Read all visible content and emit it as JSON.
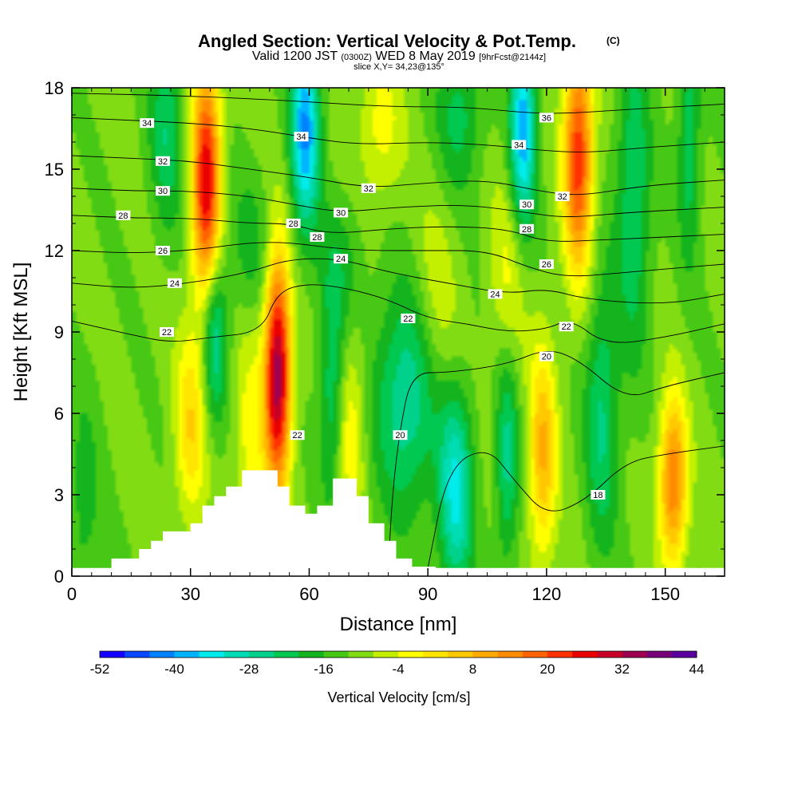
{
  "chart_data": {
    "type": "heatmap",
    "title": "Angled Section: Vertical Velocity & Pot.Temp.",
    "title_mark": "(C)",
    "subtitle_valid": "Valid 1200 JST",
    "subtitle_utc": "(0300Z)",
    "subtitle_date": "WED 8 May 2019",
    "subtitle_fcst": "[9hrFcst@2144z]",
    "subtitle_slice": "slice X,Y= 34,23@135°",
    "xlabel": "Distance [nm]",
    "ylabel": "Height [Kft MSL]",
    "xlim": [
      0,
      165
    ],
    "ylim": [
      0,
      18
    ],
    "x_ticks": [
      "0",
      "30",
      "60",
      "90",
      "120",
      "150"
    ],
    "x_tick_values": [
      0,
      30,
      60,
      90,
      120,
      150
    ],
    "y_ticks": [
      "0",
      "3",
      "6",
      "9",
      "12",
      "15",
      "18"
    ],
    "y_tick_values": [
      0,
      3,
      6,
      9,
      12,
      15,
      18
    ],
    "colorbar": {
      "label": "Vertical Velocity [cm/s]",
      "tick_labels": [
        "-52",
        "-40",
        "-28",
        "-16",
        "-4",
        "8",
        "20",
        "32",
        "44"
      ],
      "colors": [
        "#1400ff",
        "#0a46ff",
        "#0082ff",
        "#00b4ff",
        "#00ebeb",
        "#00dcb4",
        "#00d28c",
        "#00c850",
        "#14b41e",
        "#46c814",
        "#82dc14",
        "#c3f000",
        "#ffff00",
        "#ffe600",
        "#ffc800",
        "#ffaa00",
        "#ff8c00",
        "#ff6400",
        "#ff3200",
        "#eb0000",
        "#c80028",
        "#a00050",
        "#780078",
        "#5a00a0"
      ]
    },
    "terrain": [
      [
        0,
        0.3
      ],
      [
        10,
        0.3
      ],
      [
        10,
        0.65
      ],
      [
        17,
        0.65
      ],
      [
        17,
        1.0
      ],
      [
        20,
        1.0
      ],
      [
        20,
        1.3
      ],
      [
        23,
        1.3
      ],
      [
        23,
        1.65
      ],
      [
        30,
        1.65
      ],
      [
        30,
        1.95
      ],
      [
        33,
        1.95
      ],
      [
        33,
        2.6
      ],
      [
        36,
        2.6
      ],
      [
        36,
        2.95
      ],
      [
        39,
        2.95
      ],
      [
        39,
        3.3
      ],
      [
        43,
        3.3
      ],
      [
        43,
        3.9
      ],
      [
        52,
        3.9
      ],
      [
        52,
        3.3
      ],
      [
        55,
        3.3
      ],
      [
        55,
        2.6
      ],
      [
        59,
        2.6
      ],
      [
        59,
        2.3
      ],
      [
        62,
        2.3
      ],
      [
        62,
        2.6
      ],
      [
        66,
        2.6
      ],
      [
        66,
        3.6
      ],
      [
        72,
        3.6
      ],
      [
        72,
        2.95
      ],
      [
        75,
        2.95
      ],
      [
        75,
        1.95
      ],
      [
        79,
        1.95
      ],
      [
        79,
        1.3
      ],
      [
        82,
        1.3
      ],
      [
        82,
        0.65
      ],
      [
        86,
        0.65
      ],
      [
        86,
        0.35
      ],
      [
        92,
        0.35
      ],
      [
        92,
        0.3
      ],
      [
        165,
        0.3
      ]
    ],
    "vertical_velocity_cells": [
      {
        "x": 34,
        "y": 14.5,
        "w": 58,
        "sx": 2.5,
        "sy": 3.2
      },
      {
        "x": 52,
        "y": 7.5,
        "w": 70,
        "sx": 2.3,
        "sy": 3.0
      },
      {
        "x": 128,
        "y": 15.5,
        "w": 52,
        "sx": 2.6,
        "sy": 3.0
      },
      {
        "x": 152,
        "y": 3.5,
        "w": 42,
        "sx": 2.5,
        "sy": 2.2
      },
      {
        "x": 119,
        "y": 4.5,
        "w": 30,
        "sx": 2.5,
        "sy": 2.8
      },
      {
        "x": 30,
        "y": 5.5,
        "w": 22,
        "sx": 2.8,
        "sy": 2.5
      },
      {
        "x": 70,
        "y": 5.5,
        "w": 18,
        "sx": 3.0,
        "sy": 2.5
      },
      {
        "x": 45,
        "y": 5.0,
        "w": 14,
        "sx": 3.0,
        "sy": 3.0
      },
      {
        "x": 78,
        "y": 16.5,
        "w": 14,
        "sx": 4.0,
        "sy": 2.0
      },
      {
        "x": 92,
        "y": 9.5,
        "w": 12,
        "sx": 4.0,
        "sy": 3.0
      },
      {
        "x": 110,
        "y": 11.0,
        "w": 12,
        "sx": 3.0,
        "sy": 3.0
      },
      {
        "x": 59,
        "y": 16.5,
        "w": -44,
        "sx": 2.5,
        "sy": 2.5
      },
      {
        "x": 114,
        "y": 16.5,
        "w": -42,
        "sx": 2.3,
        "sy": 2.5
      },
      {
        "x": 36,
        "y": 9.0,
        "w": -28,
        "sx": 2.2,
        "sy": 2.2
      },
      {
        "x": 97,
        "y": 3.0,
        "w": -32,
        "sx": 3.0,
        "sy": 2.6
      },
      {
        "x": 85,
        "y": 6.5,
        "w": -26,
        "sx": 6.0,
        "sy": 2.8
      },
      {
        "x": 66,
        "y": 6.5,
        "w": -22,
        "sx": 2.3,
        "sy": 2.8
      },
      {
        "x": 110,
        "y": 4.5,
        "w": -22,
        "sx": 2.0,
        "sy": 2.8
      },
      {
        "x": 134,
        "y": 6.0,
        "w": -20,
        "sx": 3.0,
        "sy": 3.5
      },
      {
        "x": 142,
        "y": 14.0,
        "w": -20,
        "sx": 3.0,
        "sy": 4.0
      },
      {
        "x": 24,
        "y": 16.5,
        "w": -18,
        "sx": 3.0,
        "sy": 2.5
      },
      {
        "x": 98,
        "y": 17.0,
        "w": -16,
        "sx": 4.0,
        "sy": 2.0
      },
      {
        "x": 156,
        "y": 16.0,
        "w": -18,
        "sx": 2.0,
        "sy": 3.0
      },
      {
        "x": 3,
        "y": 2.5,
        "w": -10,
        "sx": 3.0,
        "sy": 3.0
      },
      {
        "x": 68,
        "y": 11.5,
        "w": -10,
        "sx": 4.0,
        "sy": 1.8
      },
      {
        "x": 45,
        "y": 12.0,
        "w": -10,
        "sx": 4.0,
        "sy": 2.0
      }
    ],
    "pot_temp_contours": [
      {
        "label": "18",
        "points": [
          [
            90,
            0.3
          ],
          [
            95,
            4
          ],
          [
            105,
            4.8
          ],
          [
            112,
            3.5
          ],
          [
            120,
            2.2
          ],
          [
            130,
            2.8
          ],
          [
            140,
            4.2
          ],
          [
            150,
            4.5
          ],
          [
            165,
            4.8
          ]
        ]
      },
      {
        "label": "20",
        "points": [
          [
            80,
            0.3
          ],
          [
            81,
            3
          ],
          [
            83,
            5.5
          ],
          [
            86,
            7.5
          ],
          [
            95,
            7.5
          ],
          [
            110,
            7.8
          ],
          [
            120,
            8.4
          ],
          [
            128,
            8.0
          ],
          [
            140,
            6.5
          ],
          [
            150,
            7.0
          ],
          [
            165,
            7.5
          ]
        ]
      },
      {
        "label": "22",
        "points": [
          [
            0,
            9.4
          ],
          [
            15,
            8.9
          ],
          [
            25,
            8.6
          ],
          [
            35,
            8.8
          ],
          [
            48,
            9.0
          ],
          [
            52,
            10.5
          ],
          [
            60,
            10.8
          ],
          [
            70,
            10.6
          ],
          [
            80,
            10.2
          ],
          [
            90,
            9.5
          ],
          [
            100,
            9.3
          ],
          [
            110,
            9.0
          ],
          [
            120,
            9.1
          ],
          [
            126,
            9.5
          ],
          [
            135,
            8.5
          ],
          [
            150,
            8.8
          ],
          [
            165,
            9.3
          ]
        ]
      },
      {
        "label": "24",
        "points": [
          [
            0,
            10.8
          ],
          [
            15,
            10.6
          ],
          [
            30,
            10.8
          ],
          [
            45,
            11.2
          ],
          [
            55,
            11.7
          ],
          [
            68,
            11.7
          ],
          [
            80,
            11.2
          ],
          [
            95,
            10.8
          ],
          [
            110,
            10.4
          ],
          [
            120,
            10.6
          ],
          [
            130,
            10.2
          ],
          [
            150,
            10.0
          ],
          [
            165,
            10.4
          ]
        ]
      },
      {
        "label": "26",
        "points": [
          [
            0,
            12.0
          ],
          [
            15,
            11.9
          ],
          [
            30,
            12.0
          ],
          [
            45,
            12.3
          ],
          [
            55,
            12.3
          ],
          [
            65,
            12.1
          ],
          [
            75,
            12.0
          ],
          [
            90,
            12.0
          ],
          [
            105,
            12.0
          ],
          [
            115,
            11.4
          ],
          [
            125,
            11.0
          ],
          [
            140,
            11.2
          ],
          [
            165,
            11.5
          ]
        ]
      },
      {
        "label": "28",
        "points": [
          [
            0,
            13.3
          ],
          [
            15,
            13.2
          ],
          [
            30,
            13.2
          ],
          [
            45,
            13.0
          ],
          [
            55,
            13.0
          ],
          [
            65,
            12.6
          ],
          [
            80,
            12.8
          ],
          [
            95,
            12.9
          ],
          [
            110,
            12.8
          ],
          [
            120,
            12.3
          ],
          [
            135,
            12.4
          ],
          [
            165,
            12.6
          ]
        ]
      },
      {
        "label": "30",
        "points": [
          [
            0,
            14.3
          ],
          [
            15,
            14.2
          ],
          [
            30,
            14.2
          ],
          [
            45,
            14.0
          ],
          [
            56,
            13.7
          ],
          [
            68,
            13.4
          ],
          [
            82,
            13.6
          ],
          [
            100,
            13.7
          ],
          [
            115,
            13.4
          ],
          [
            125,
            13.2
          ],
          [
            140,
            13.4
          ],
          [
            165,
            13.6
          ]
        ]
      },
      {
        "label": "32",
        "points": [
          [
            0,
            15.5
          ],
          [
            15,
            15.4
          ],
          [
            30,
            15.3
          ],
          [
            45,
            15.0
          ],
          [
            60,
            14.7
          ],
          [
            75,
            14.3
          ],
          [
            90,
            14.5
          ],
          [
            105,
            14.6
          ],
          [
            118,
            14.2
          ],
          [
            128,
            14.0
          ],
          [
            145,
            14.4
          ],
          [
            165,
            14.6
          ]
        ]
      },
      {
        "label": "34",
        "points": [
          [
            0,
            16.9
          ],
          [
            15,
            16.8
          ],
          [
            30,
            16.7
          ],
          [
            45,
            16.5
          ],
          [
            58,
            16.2
          ],
          [
            72,
            15.9
          ],
          [
            90,
            16.0
          ],
          [
            105,
            15.9
          ],
          [
            118,
            15.7
          ],
          [
            130,
            15.6
          ],
          [
            145,
            15.8
          ],
          [
            165,
            16.0
          ]
        ]
      },
      {
        "label": "36",
        "points": [
          [
            0,
            17.8
          ],
          [
            30,
            17.7
          ],
          [
            58,
            17.5
          ],
          [
            80,
            17.3
          ],
          [
            100,
            17.3
          ],
          [
            120,
            17.0
          ],
          [
            140,
            17.2
          ],
          [
            165,
            17.4
          ]
        ]
      }
    ],
    "contour_labels": [
      {
        "text": "34",
        "x": 19,
        "y": 16.7
      },
      {
        "text": "32",
        "x": 23,
        "y": 15.3
      },
      {
        "text": "30",
        "x": 23,
        "y": 14.2
      },
      {
        "text": "28",
        "x": 13,
        "y": 13.3
      },
      {
        "text": "26",
        "x": 23,
        "y": 12.0
      },
      {
        "text": "24",
        "x": 26,
        "y": 10.8
      },
      {
        "text": "22",
        "x": 24,
        "y": 9.0
      },
      {
        "text": "34",
        "x": 58,
        "y": 16.2
      },
      {
        "text": "32",
        "x": 75,
        "y": 14.3
      },
      {
        "text": "30",
        "x": 68,
        "y": 13.4
      },
      {
        "text": "28",
        "x": 56,
        "y": 13.0
      },
      {
        "text": "28",
        "x": 62,
        "y": 12.5
      },
      {
        "text": "24",
        "x": 68,
        "y": 11.7
      },
      {
        "text": "22",
        "x": 85,
        "y": 9.5
      },
      {
        "text": "22",
        "x": 57,
        "y": 5.2
      },
      {
        "text": "20",
        "x": 83,
        "y": 5.2
      },
      {
        "text": "36",
        "x": 120,
        "y": 16.9
      },
      {
        "text": "34",
        "x": 113,
        "y": 15.9
      },
      {
        "text": "32",
        "x": 124,
        "y": 14.0
      },
      {
        "text": "30",
        "x": 115,
        "y": 13.7
      },
      {
        "text": "28",
        "x": 115,
        "y": 12.8
      },
      {
        "text": "26",
        "x": 120,
        "y": 11.5
      },
      {
        "text": "24",
        "x": 107,
        "y": 10.4
      },
      {
        "text": "22",
        "x": 125,
        "y": 9.2
      },
      {
        "text": "20",
        "x": 120,
        "y": 8.1
      },
      {
        "text": "18",
        "x": 133,
        "y": 3.0
      }
    ]
  }
}
